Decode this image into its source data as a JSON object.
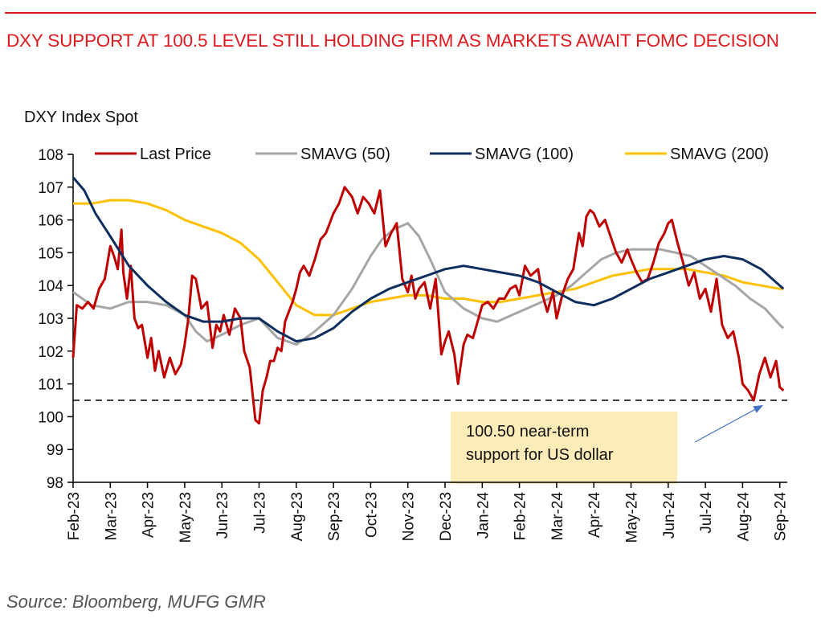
{
  "header": {
    "title": "DXY SUPPORT AT 100.5 LEVEL STILL HOLDING FIRM AS MARKETS AWAIT FOMC DECISION"
  },
  "footer": {
    "source": "Source: Bloomberg, MUFG GMR"
  },
  "colors": {
    "title": "#e0191f",
    "last_price": "#c00000",
    "sma50": "#a6a6a6",
    "sma100": "#0e2f5e",
    "sma200": "#ffc000",
    "annotation_fill": "#fdebb8",
    "arrow": "#4472c4"
  },
  "chart_data": {
    "type": "line",
    "title": "DXY Index Spot",
    "xlabel": "",
    "ylabel": "",
    "ylim": [
      98,
      108
    ],
    "yticks": [
      "98",
      "99",
      "100",
      "101",
      "102",
      "103",
      "104",
      "105",
      "106",
      "107",
      "108"
    ],
    "xticks": [
      "Feb-23",
      "Mar-23",
      "Apr-23",
      "May-23",
      "Jun-23",
      "Jul-23",
      "Aug-23",
      "Sep-23",
      "Oct-23",
      "Nov-23",
      "Dec-23",
      "Jan-24",
      "Feb-24",
      "Mar-24",
      "Apr-24",
      "May-24",
      "Jun-24",
      "Jul-24",
      "Aug-24",
      "Sep-24"
    ],
    "grid": false,
    "legend": "top",
    "legend_entries": [
      "Last Price",
      "SMAVG (50)",
      "SMAVG (100)",
      "SMAVG (200)"
    ],
    "x_unit": "months since Feb-23",
    "series": [
      {
        "name": "Last Price",
        "x": [
          0,
          0.1,
          0.25,
          0.4,
          0.55,
          0.7,
          0.85,
          1.0,
          1.1,
          1.2,
          1.3,
          1.35,
          1.45,
          1.55,
          1.65,
          1.75,
          1.85,
          2.0,
          2.1,
          2.2,
          2.3,
          2.45,
          2.6,
          2.75,
          2.9,
          3.0,
          3.1,
          3.2,
          3.3,
          3.45,
          3.6,
          3.75,
          3.85,
          3.95,
          4.05,
          4.2,
          4.35,
          4.5,
          4.6,
          4.75,
          4.9,
          5.0,
          5.1,
          5.2,
          5.3,
          5.4,
          5.5,
          5.6,
          5.7,
          5.8,
          5.9,
          6.0,
          6.1,
          6.2,
          6.35,
          6.5,
          6.65,
          6.8,
          7.0,
          7.15,
          7.3,
          7.5,
          7.65,
          7.8,
          7.95,
          8.1,
          8.25,
          8.4,
          8.55,
          8.7,
          8.85,
          9.0,
          9.1,
          9.2,
          9.3,
          9.45,
          9.6,
          9.75,
          9.9,
          10.0,
          10.1,
          10.25,
          10.35,
          10.5,
          10.6,
          10.75,
          10.9,
          11.0,
          11.15,
          11.3,
          11.45,
          11.6,
          11.75,
          11.9,
          12.0,
          12.15,
          12.3,
          12.5,
          12.6,
          12.75,
          12.9,
          13.0,
          13.15,
          13.3,
          13.45,
          13.6,
          13.7,
          13.8,
          13.9,
          14.0,
          14.15,
          14.3,
          14.45,
          14.6,
          14.75,
          14.9,
          15.0,
          15.15,
          15.3,
          15.45,
          15.6,
          15.75,
          15.9,
          16.0,
          16.1,
          16.25,
          16.4,
          16.55,
          16.7,
          16.85,
          17.0,
          17.15,
          17.3,
          17.45,
          17.6,
          17.75,
          17.9,
          18.0,
          18.15,
          18.3,
          18.45,
          18.6,
          18.75,
          18.9,
          19.0,
          19.1
        ],
        "values": [
          101.8,
          103.4,
          103.3,
          103.5,
          103.3,
          103.9,
          104.2,
          105.2,
          104.9,
          104.5,
          105.7,
          104.4,
          103.6,
          104.6,
          103.0,
          102.7,
          102.8,
          101.8,
          102.4,
          101.4,
          102.0,
          101.2,
          101.8,
          101.3,
          101.6,
          102.2,
          103.0,
          104.3,
          104.2,
          103.3,
          103.5,
          102.1,
          102.8,
          102.6,
          103.1,
          102.5,
          103.3,
          103.0,
          102.0,
          101.5,
          99.9,
          99.8,
          100.8,
          101.2,
          101.7,
          101.7,
          102.1,
          102.0,
          102.9,
          103.2,
          103.5,
          103.9,
          104.4,
          104.6,
          104.3,
          104.8,
          105.4,
          105.6,
          106.2,
          106.5,
          107.0,
          106.7,
          106.2,
          106.7,
          106.5,
          106.2,
          106.9,
          105.2,
          105.6,
          105.9,
          104.2,
          103.8,
          104.3,
          103.6,
          103.9,
          104.1,
          103.3,
          104.2,
          101.9,
          102.3,
          102.6,
          101.9,
          101.0,
          102.2,
          102.5,
          102.4,
          103.0,
          103.4,
          103.5,
          103.3,
          103.6,
          103.6,
          103.9,
          104.0,
          103.7,
          104.6,
          104.3,
          104.5,
          103.8,
          103.2,
          103.8,
          103.0,
          103.7,
          104.2,
          104.5,
          105.6,
          105.2,
          106.1,
          106.3,
          106.2,
          105.8,
          106.0,
          105.5,
          105.0,
          104.7,
          105.1,
          104.8,
          104.4,
          104.1,
          104.2,
          104.7,
          105.3,
          105.6,
          105.9,
          106.0,
          105.3,
          104.7,
          104.0,
          104.4,
          103.6,
          103.9,
          103.2,
          104.2,
          102.8,
          102.4,
          102.6,
          101.8,
          101.0,
          100.8,
          100.5,
          101.3,
          101.8,
          101.2,
          101.7,
          100.9,
          100.8
        ]
      },
      {
        "name": "SMAVG (50)",
        "x": [
          0,
          0.5,
          1,
          1.5,
          2,
          2.5,
          3,
          3.3,
          3.6,
          4,
          4.5,
          5,
          5.5,
          6,
          6.5,
          7,
          7.5,
          8,
          8.3,
          8.6,
          9,
          9.3,
          9.6,
          10,
          10.5,
          11,
          11.4,
          11.8,
          12.2,
          12.6,
          13,
          13.4,
          13.8,
          14.2,
          14.6,
          15,
          15.4,
          15.8,
          16.2,
          16.6,
          17,
          17.4,
          17.8,
          18.2,
          18.6,
          19,
          19.1
        ],
        "values": [
          103.8,
          103.4,
          103.3,
          103.5,
          103.5,
          103.4,
          103.1,
          102.6,
          102.3,
          102.5,
          102.8,
          103.0,
          102.4,
          102.2,
          102.6,
          103.1,
          103.9,
          104.9,
          105.4,
          105.7,
          105.9,
          105.5,
          104.8,
          103.8,
          103.3,
          103.0,
          102.9,
          103.1,
          103.3,
          103.5,
          103.7,
          104.0,
          104.4,
          104.8,
          105.0,
          105.1,
          105.1,
          105.1,
          105.0,
          104.9,
          104.6,
          104.3,
          104.0,
          103.6,
          103.3,
          102.8,
          102.7
        ]
      },
      {
        "name": "SMAVG (100)",
        "x": [
          0,
          0.3,
          0.6,
          1,
          1.5,
          2,
          2.5,
          3,
          3.5,
          4,
          4.5,
          5,
          5.5,
          6,
          6.5,
          7,
          7.5,
          8,
          8.5,
          9,
          9.5,
          10,
          10.5,
          11,
          11.5,
          12,
          12.5,
          13,
          13.5,
          14,
          14.5,
          15,
          15.5,
          16,
          16.5,
          17,
          17.5,
          18,
          18.5,
          19,
          19.1
        ],
        "values": [
          107.3,
          106.9,
          106.2,
          105.5,
          104.6,
          104.0,
          103.5,
          103.1,
          102.9,
          102.9,
          103.0,
          103.0,
          102.6,
          102.3,
          102.4,
          102.7,
          103.2,
          103.6,
          103.9,
          104.1,
          104.3,
          104.5,
          104.6,
          104.5,
          104.4,
          104.3,
          104.1,
          103.8,
          103.5,
          103.4,
          103.6,
          103.9,
          104.2,
          104.4,
          104.6,
          104.8,
          104.9,
          104.8,
          104.5,
          104.0,
          103.9
        ]
      },
      {
        "name": "SMAVG (200)",
        "x": [
          0,
          0.5,
          1,
          1.5,
          2,
          2.5,
          3,
          3.5,
          4,
          4.5,
          5,
          5.5,
          6,
          6.5,
          7,
          7.5,
          8,
          8.5,
          9,
          9.5,
          10,
          10.5,
          11,
          11.5,
          12,
          12.5,
          13,
          13.5,
          14,
          14.5,
          15,
          15.5,
          16,
          16.5,
          17,
          17.5,
          18,
          18.5,
          19,
          19.1
        ],
        "values": [
          106.5,
          106.5,
          106.6,
          106.6,
          106.5,
          106.3,
          106.0,
          105.8,
          105.6,
          105.3,
          104.8,
          104.1,
          103.4,
          103.1,
          103.1,
          103.3,
          103.5,
          103.6,
          103.7,
          103.7,
          103.6,
          103.6,
          103.5,
          103.5,
          103.6,
          103.7,
          103.8,
          103.9,
          104.1,
          104.3,
          104.4,
          104.5,
          104.5,
          104.5,
          104.4,
          104.3,
          104.1,
          104.0,
          103.9,
          103.9
        ]
      }
    ],
    "reference_lines": [
      {
        "type": "horizontal",
        "value": 100.5,
        "style": "dashed",
        "color": "#000000"
      }
    ],
    "annotations": [
      {
        "text_lines": [
          "100.50 near-term",
          "support for US dollar"
        ],
        "arrow_to": {
          "x": "Aug-24 (mid)",
          "y": 100.5
        }
      }
    ]
  }
}
